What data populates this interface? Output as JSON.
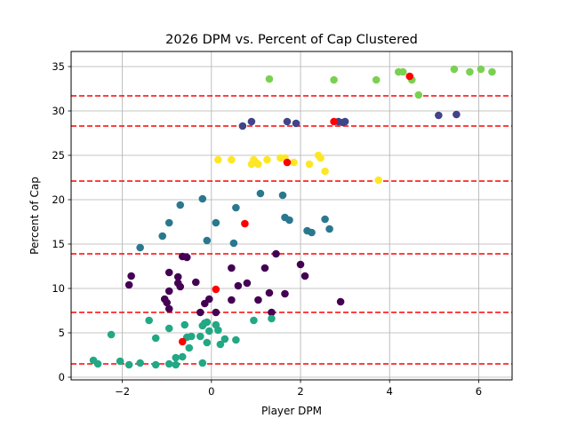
{
  "chart_data": {
    "type": "scatter",
    "title": "2026 DPM vs. Percent of Cap Clustered",
    "xlabel": "Player DPM",
    "ylabel": "Percent of Cap",
    "xlim": [
      -3.15,
      6.75
    ],
    "ylim": [
      -0.3,
      36.7
    ],
    "xticks": [
      -2,
      0,
      2,
      4,
      6
    ],
    "xtick_labels": [
      "−2",
      "0",
      "2",
      "4",
      "6"
    ],
    "yticks": [
      0,
      5,
      10,
      15,
      20,
      25,
      30,
      35
    ],
    "ytick_labels": [
      "0",
      "5",
      "10",
      "15",
      "20",
      "25",
      "30",
      "35"
    ],
    "grid": true,
    "hlines": {
      "color": "#ff0000",
      "style": "dashed",
      "y": [
        1.5,
        7.3,
        13.9,
        22.1,
        28.3,
        31.7
      ]
    },
    "series": [
      {
        "color": "#7ad151",
        "points": [
          [
            1.3,
            33.6
          ],
          [
            2.75,
            33.5
          ],
          [
            3.7,
            33.5
          ],
          [
            4.2,
            34.4
          ],
          [
            4.3,
            34.4
          ],
          [
            4.5,
            33.5
          ],
          [
            4.65,
            31.8
          ],
          [
            5.45,
            34.7
          ],
          [
            5.8,
            34.4
          ],
          [
            6.05,
            34.7
          ],
          [
            6.3,
            34.4
          ]
        ]
      },
      {
        "color": "#414487",
        "points": [
          [
            0.7,
            28.3
          ],
          [
            0.9,
            28.8
          ],
          [
            1.7,
            28.8
          ],
          [
            1.9,
            28.6
          ],
          [
            2.85,
            28.8
          ],
          [
            2.95,
            28.7
          ],
          [
            3.0,
            28.8
          ],
          [
            5.1,
            29.5
          ],
          [
            5.5,
            29.6
          ]
        ]
      },
      {
        "color": "#fde725",
        "points": [
          [
            0.15,
            24.5
          ],
          [
            0.45,
            24.5
          ],
          [
            0.9,
            24.0
          ],
          [
            0.95,
            24.5
          ],
          [
            1.0,
            24.2
          ],
          [
            1.05,
            24.0
          ],
          [
            1.25,
            24.5
          ],
          [
            1.55,
            24.7
          ],
          [
            1.65,
            24.7
          ],
          [
            1.85,
            24.2
          ],
          [
            2.2,
            24.0
          ],
          [
            2.4,
            25.0
          ],
          [
            2.45,
            24.7
          ],
          [
            2.55,
            23.2
          ],
          [
            3.75,
            22.2
          ]
        ]
      },
      {
        "color": "#2a788e",
        "points": [
          [
            -1.6,
            14.6
          ],
          [
            -1.1,
            15.9
          ],
          [
            -0.95,
            17.4
          ],
          [
            -0.7,
            19.4
          ],
          [
            -0.2,
            20.1
          ],
          [
            -0.1,
            15.4
          ],
          [
            0.1,
            17.4
          ],
          [
            0.5,
            15.1
          ],
          [
            0.55,
            19.1
          ],
          [
            1.1,
            20.7
          ],
          [
            1.6,
            20.5
          ],
          [
            1.65,
            18.0
          ],
          [
            1.75,
            17.7
          ],
          [
            2.15,
            16.5
          ],
          [
            2.25,
            16.3
          ],
          [
            2.55,
            17.8
          ],
          [
            2.65,
            16.7
          ]
        ]
      },
      {
        "color": "#440154",
        "points": [
          [
            -1.85,
            10.4
          ],
          [
            -1.8,
            11.4
          ],
          [
            -1.05,
            8.8
          ],
          [
            -1.0,
            8.4
          ],
          [
            -0.95,
            11.8
          ],
          [
            -0.95,
            9.7
          ],
          [
            -0.95,
            7.7
          ],
          [
            -0.75,
            11.3
          ],
          [
            -0.75,
            10.6
          ],
          [
            -0.7,
            10.2
          ],
          [
            -0.65,
            13.6
          ],
          [
            -0.55,
            13.5
          ],
          [
            -0.35,
            10.7
          ],
          [
            -0.25,
            7.3
          ],
          [
            -0.15,
            8.3
          ],
          [
            -0.05,
            8.8
          ],
          [
            0.1,
            7.3
          ],
          [
            0.45,
            8.7
          ],
          [
            0.45,
            12.3
          ],
          [
            0.6,
            10.3
          ],
          [
            0.8,
            10.6
          ],
          [
            1.05,
            8.7
          ],
          [
            1.2,
            12.3
          ],
          [
            1.3,
            9.5
          ],
          [
            1.35,
            7.3
          ],
          [
            1.45,
            13.9
          ],
          [
            1.65,
            9.4
          ],
          [
            2.0,
            12.7
          ],
          [
            2.1,
            11.4
          ],
          [
            2.9,
            8.5
          ]
        ]
      },
      {
        "color": "#22a884",
        "points": [
          [
            -2.65,
            1.9
          ],
          [
            -2.55,
            1.5
          ],
          [
            -2.25,
            4.8
          ],
          [
            -2.05,
            1.8
          ],
          [
            -1.85,
            1.4
          ],
          [
            -1.6,
            1.6
          ],
          [
            -1.4,
            6.4
          ],
          [
            -1.25,
            4.4
          ],
          [
            -1.25,
            1.4
          ],
          [
            -0.95,
            5.5
          ],
          [
            -0.95,
            1.5
          ],
          [
            -0.8,
            1.4
          ],
          [
            -0.8,
            2.2
          ],
          [
            -0.65,
            2.3
          ],
          [
            -0.6,
            5.9
          ],
          [
            -0.55,
            4.5
          ],
          [
            -0.5,
            3.3
          ],
          [
            -0.45,
            4.6
          ],
          [
            -0.25,
            4.6
          ],
          [
            -0.2,
            5.8
          ],
          [
            -0.15,
            6.1
          ],
          [
            -0.1,
            6.2
          ],
          [
            -0.05,
            5.2
          ],
          [
            0.1,
            5.9
          ],
          [
            0.15,
            5.3
          ],
          [
            0.2,
            3.7
          ],
          [
            0.3,
            4.3
          ],
          [
            0.55,
            4.2
          ],
          [
            0.95,
            6.4
          ],
          [
            1.35,
            6.6
          ],
          [
            -0.2,
            1.6
          ],
          [
            -0.1,
            3.9
          ]
        ]
      },
      {
        "color": "#ff0000",
        "points": [
          [
            -0.65,
            4.0
          ],
          [
            0.1,
            9.9
          ],
          [
            0.75,
            17.3
          ],
          [
            1.7,
            24.2
          ],
          [
            2.75,
            28.8
          ],
          [
            4.45,
            33.9
          ]
        ]
      }
    ]
  }
}
